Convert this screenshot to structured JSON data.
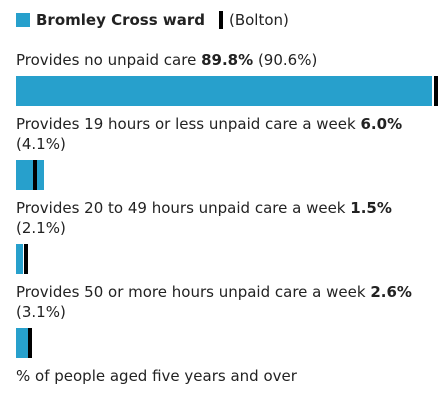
{
  "chart_data": {
    "type": "bar",
    "categories": [
      "Provides no unpaid care",
      "Provides 19 hours or less unpaid care a week",
      "Provides 20 to 49 hours unpaid care a week",
      "Provides 50 or more hours unpaid care a week"
    ],
    "series": [
      {
        "name": "Bromley Cross ward",
        "color": "#27a0cc",
        "values": [
          89.8,
          6.0,
          1.5,
          2.6
        ],
        "value_labels": [
          "89.8%",
          "6.0%",
          "1.5%",
          "2.6%"
        ]
      },
      {
        "name": "(Bolton)",
        "color": "#000000",
        "values": [
          90.6,
          4.1,
          2.1,
          3.1
        ],
        "value_labels": [
          "(90.6%)",
          "(4.1%)",
          "(2.1%)",
          "(3.1%)"
        ]
      }
    ],
    "xlim": [
      0,
      92
    ],
    "xlabel": "% of people aged five years and over"
  }
}
